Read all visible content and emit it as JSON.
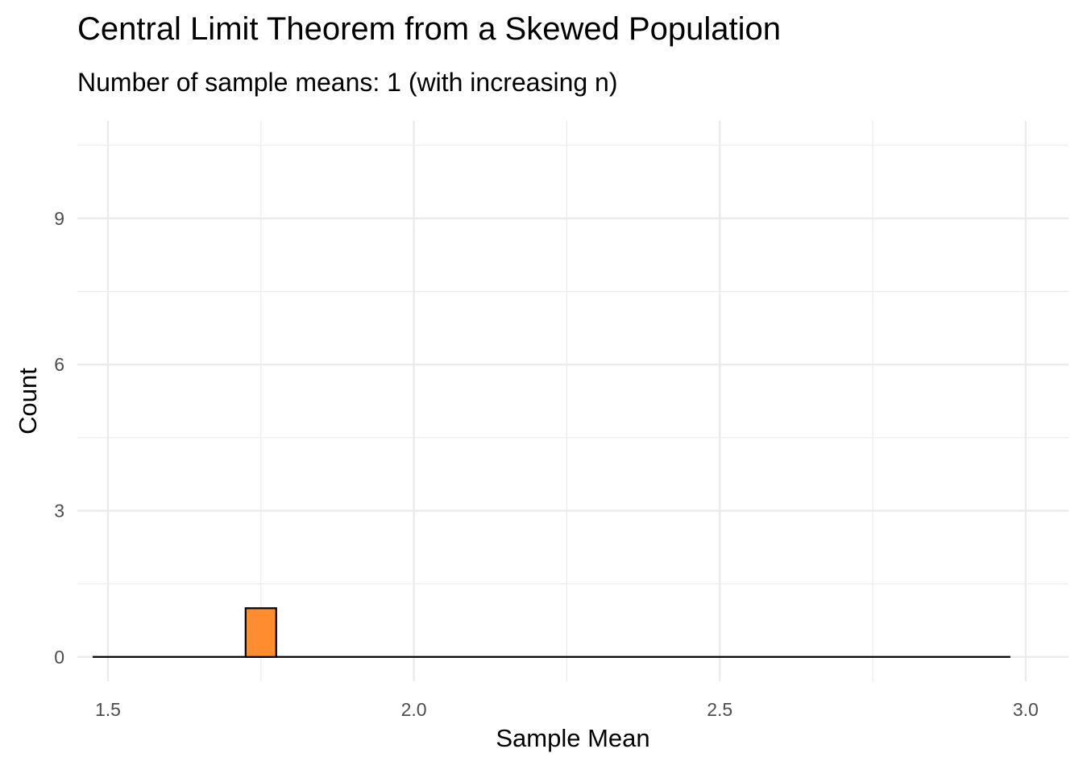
{
  "chart_data": {
    "type": "bar",
    "title": "Central Limit Theorem from a Skewed Population",
    "subtitle": "Number of sample means: 1 (with increasing n)",
    "xlabel": "Sample Mean",
    "ylabel": "Count",
    "xlim": [
      1.45,
      3.07
    ],
    "ylim": [
      -0.5,
      11.0
    ],
    "x_ticks": [
      1.5,
      2.0,
      2.5,
      3.0
    ],
    "x_tick_labels": [
      "1.5",
      "2.0",
      "2.5",
      "3.0"
    ],
    "y_ticks": [
      0,
      3,
      6,
      9
    ],
    "y_tick_labels": [
      "0",
      "3",
      "6",
      "9"
    ],
    "bin_range": [
      1.475,
      2.975
    ],
    "bins": [
      {
        "x0": 1.725,
        "x1": 1.775,
        "count": 1
      }
    ],
    "grid": true,
    "fill_color": "#ff8c2e",
    "outline_color": "#000000",
    "gridline_color": "#ebebeb"
  }
}
